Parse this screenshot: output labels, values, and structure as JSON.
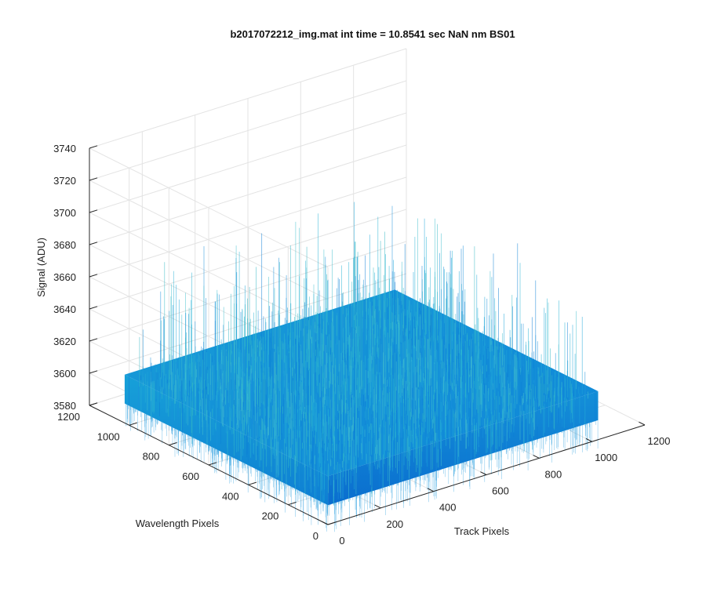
{
  "chart_data": {
    "type": "surface",
    "title": "b2017072212_img.mat int time = 10.8541 sec  NaN nm BS01",
    "xlabel": "Track Pixels",
    "ylabel": "Wavelength Pixels",
    "zlabel": "Signal (ADU)",
    "xlim": [
      0,
      1200
    ],
    "ylim": [
      0,
      1200
    ],
    "zlim": [
      3580,
      3740
    ],
    "x_ticks": [
      "0",
      "200",
      "400",
      "600",
      "800",
      "1000",
      "1200"
    ],
    "y_ticks": [
      "0",
      "200",
      "400",
      "600",
      "800",
      "1000",
      "1200"
    ],
    "z_ticks": [
      "3580",
      "3600",
      "3620",
      "3640",
      "3660",
      "3680",
      "3700",
      "3720",
      "3740"
    ],
    "surface_extent": {
      "x": [
        1,
        1024
      ],
      "y": [
        1,
        1024
      ]
    },
    "surface_level_approx": 3610,
    "noise_range_approx": [
      3585,
      3680
    ],
    "colormap": "parula",
    "grid": true
  }
}
